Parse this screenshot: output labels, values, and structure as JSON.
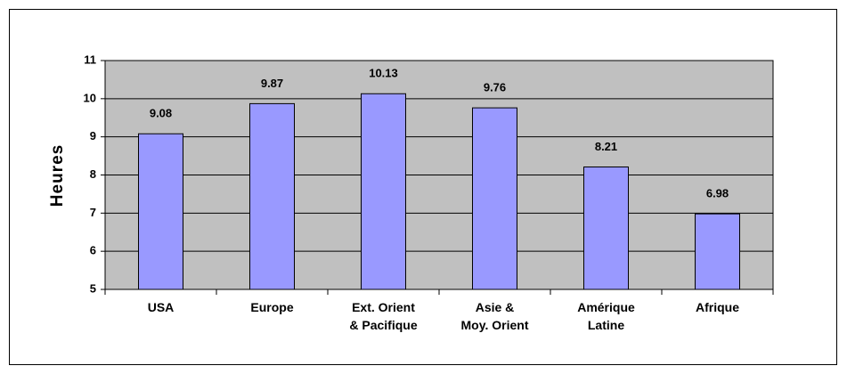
{
  "chart_data": {
    "type": "bar",
    "y_label": "Heures",
    "categories": [
      "USA",
      "Europe",
      "Ext. Orient\n& Pacifique",
      "Asie &\nMoy. Orient",
      "Amérique\nLatine",
      "Afrique"
    ],
    "values": [
      9.08,
      9.87,
      10.13,
      9.76,
      8.21,
      6.98
    ],
    "color": "#9999ff",
    "plot_background": "#c0c0c0",
    "ylim": [
      5,
      11
    ],
    "yticks": [
      5,
      6,
      7,
      8,
      9,
      10,
      11
    ],
    "grid": true
  }
}
